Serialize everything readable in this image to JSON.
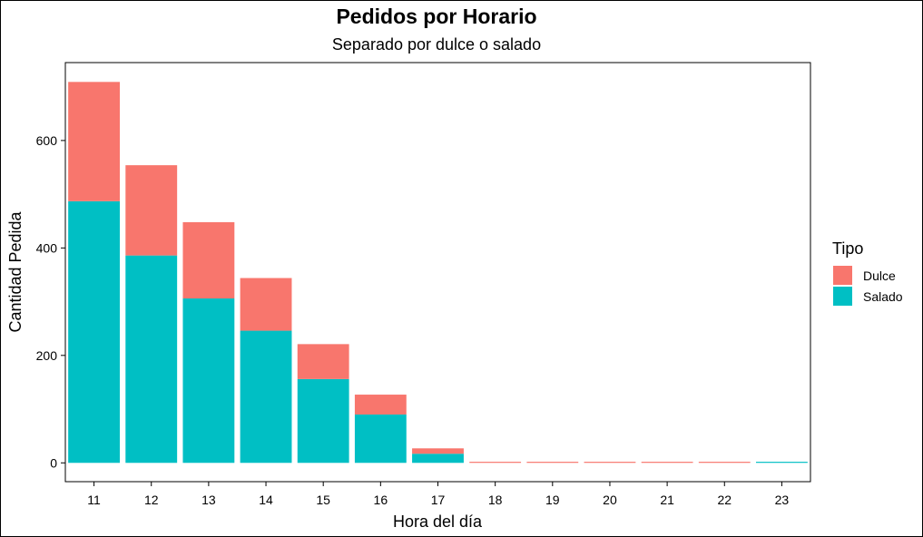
{
  "chart_data": {
    "type": "bar",
    "stacked": true,
    "title": "Pedidos por Horario",
    "subtitle": "Separado por dulce o salado",
    "xlabel": "Hora del día",
    "ylabel": "Cantidad Pedida",
    "categories": [
      "11",
      "12",
      "13",
      "14",
      "15",
      "16",
      "17",
      "18",
      "19",
      "20",
      "21",
      "22",
      "23"
    ],
    "series": [
      {
        "name": "Salado",
        "color": "#00BFC4",
        "values": [
          487,
          386,
          306,
          246,
          156,
          90,
          17,
          0,
          0,
          0,
          0,
          0,
          2
        ]
      },
      {
        "name": "Dulce",
        "color": "#F8766D",
        "values": [
          222,
          168,
          142,
          98,
          65,
          37,
          10,
          2,
          2,
          2,
          2,
          2,
          0
        ]
      }
    ],
    "yticks": [
      0,
      200,
      400,
      600
    ],
    "ylim": [
      -35,
      745
    ],
    "legend": {
      "title": "Tipo",
      "position": "right",
      "items": [
        "Dulce",
        "Salado"
      ]
    },
    "grid": false
  }
}
